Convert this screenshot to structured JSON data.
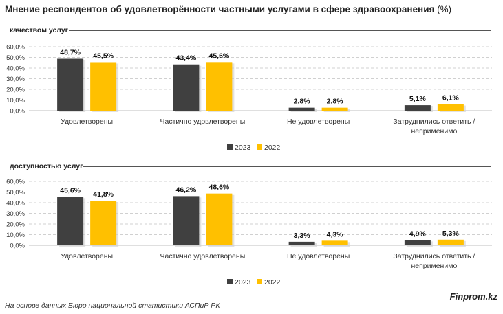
{
  "title": "Мнение респондентов об удовлетворённости частными услугами в сфере здравоохранения",
  "unit": "(%)",
  "footer": {
    "source": "На основе данных Бюро национальной статистики АСПиР РК",
    "brand": "Finprom.kz"
  },
  "chart_data": [
    {
      "type": "bar",
      "title": "качеством услуг",
      "categories": [
        "Удовлетворены",
        "Частично удовлетворены",
        "Не удовлетворены",
        [
          "Затруднились ответить /",
          "неприменимо"
        ]
      ],
      "series": [
        {
          "name": "2023",
          "color": "#404040",
          "values": [
            48.7,
            43.4,
            2.8,
            5.1
          ]
        },
        {
          "name": "2022",
          "color": "#FFC000",
          "values": [
            45.5,
            45.6,
            2.8,
            6.1
          ]
        }
      ],
      "value_labels": [
        [
          "48,7%",
          "43,4%",
          "2,8%",
          "5,1%"
        ],
        [
          "45,5%",
          "45,6%",
          "2,8%",
          "6,1%"
        ]
      ],
      "yticks": [
        "0,0%",
        "10,0%",
        "20,0%",
        "30,0%",
        "40,0%",
        "50,0%",
        "60,0%"
      ],
      "ylim": [
        0,
        60
      ],
      "grid": true,
      "legend_position": "bottom"
    },
    {
      "type": "bar",
      "title": "доступностью услуг",
      "categories": [
        "Удовлетворены",
        "Частично удовлетворены",
        "Не удовлетворены",
        [
          "Затруднились ответить /",
          "неприменимо"
        ]
      ],
      "series": [
        {
          "name": "2023",
          "color": "#404040",
          "values": [
            45.6,
            46.2,
            3.3,
            4.9
          ]
        },
        {
          "name": "2022",
          "color": "#FFC000",
          "values": [
            41.8,
            48.6,
            4.3,
            5.3
          ]
        }
      ],
      "value_labels": [
        [
          "45,6%",
          "46,2%",
          "3,3%",
          "4,9%"
        ],
        [
          "41,8%",
          "48,6%",
          "4,3%",
          "5,3%"
        ]
      ],
      "yticks": [
        "0,0%",
        "10,0%",
        "20,0%",
        "30,0%",
        "40,0%",
        "50,0%",
        "60,0%"
      ],
      "ylim": [
        0,
        60
      ],
      "grid": true,
      "legend_position": "bottom"
    }
  ]
}
